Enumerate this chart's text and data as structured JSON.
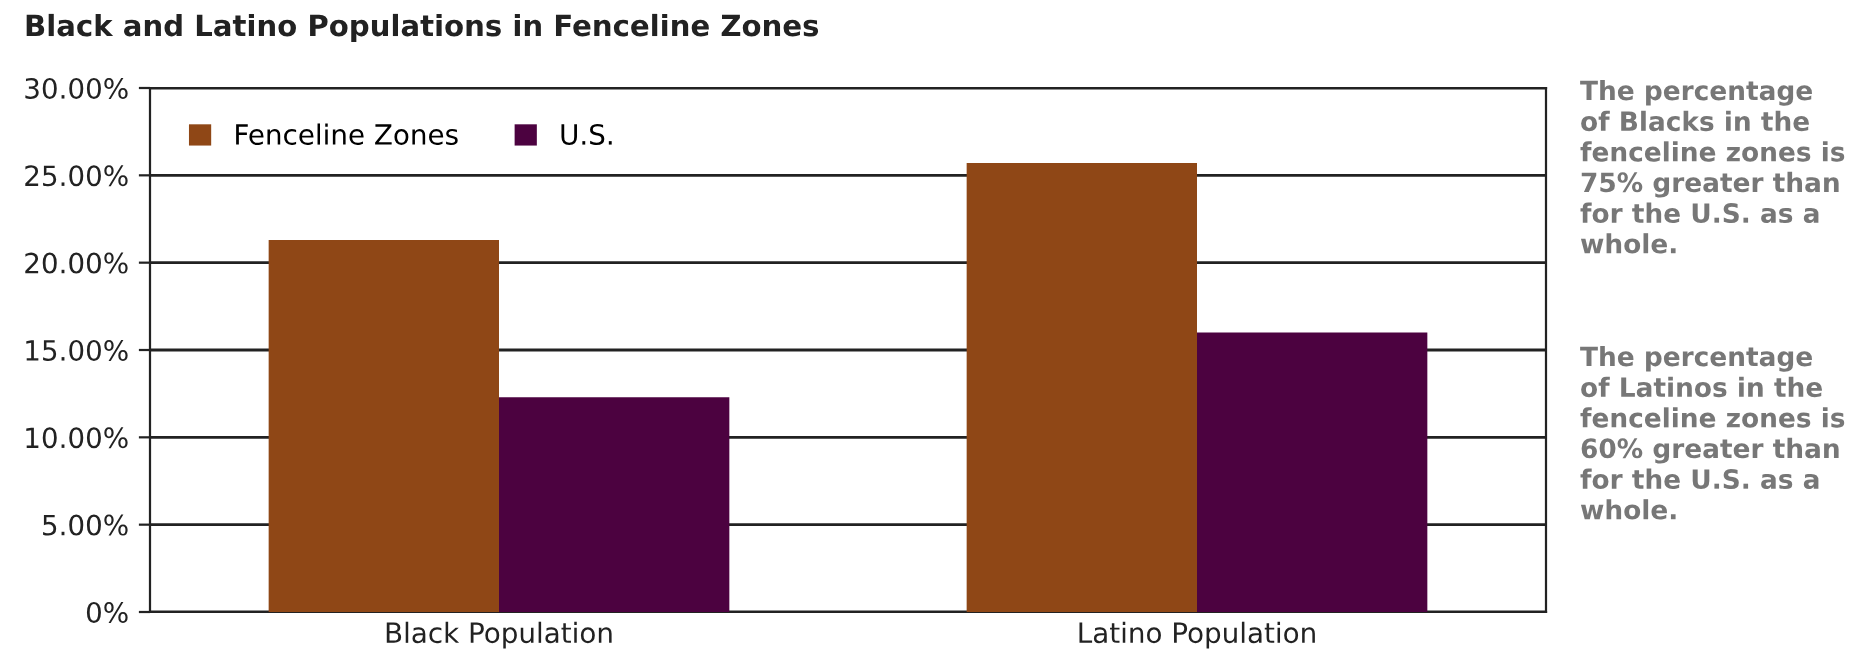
{
  "chart_data": {
    "type": "bar",
    "title": "Black and Latino Populations in Fenceline Zones",
    "categories": [
      "Black Population",
      "Latino Population"
    ],
    "series": [
      {
        "name": "Fenceline Zones",
        "color": "#8f4716",
        "values": [
          21.3,
          25.7
        ]
      },
      {
        "name": "U.S.",
        "color": "#4c0240",
        "values": [
          12.3,
          16.0
        ]
      }
    ],
    "ylim": [
      0,
      30
    ],
    "yticks": [
      {
        "value": 0,
        "label": "0%"
      },
      {
        "value": 5,
        "label": "5.00%"
      },
      {
        "value": 10,
        "label": "10.00%"
      },
      {
        "value": 15,
        "label": "15.00%"
      },
      {
        "value": 20,
        "label": "20.00%"
      },
      {
        "value": 25,
        "label": "25.00%"
      },
      {
        "value": 30,
        "label": "30.00%"
      }
    ],
    "grid": "y",
    "legend": "top left",
    "annotations": [
      "The percentage\nof Blacks in the\nfenceline zones is\n75% greater than\nfor the U.S. as a\nwhole.",
      "The percentage\nof Latinos in the\nfenceline zones is\n60% greater than\nfor the U.S. as a\nwhole."
    ]
  }
}
